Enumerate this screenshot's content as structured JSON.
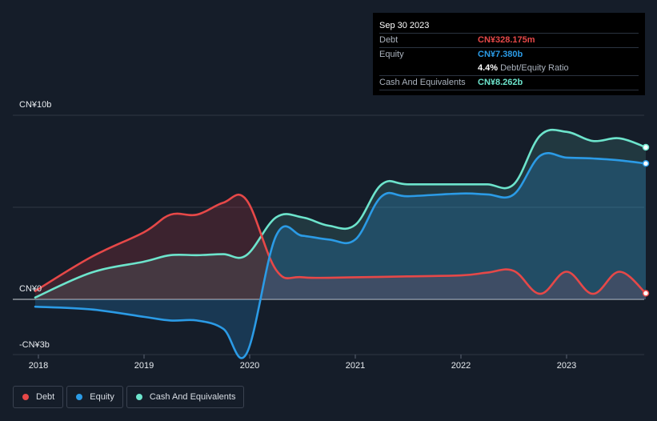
{
  "tooltip": {
    "date": "Sep 30 2023",
    "rows": [
      {
        "label": "Debt",
        "value": "CN¥328.175m"
      },
      {
        "label": "Equity",
        "value": "CN¥7.380b"
      },
      {
        "label": "",
        "value": "4.4%",
        "suffix": "Debt/Equity Ratio"
      },
      {
        "label": "Cash And Equivalents",
        "value": "CN¥8.262b"
      }
    ]
  },
  "y_axis": {
    "top_label": "CN¥10b",
    "zero_label": "CN¥0",
    "bottom_label": "-CN¥3b"
  },
  "x_axis": {
    "labels": [
      "2018",
      "2019",
      "2020",
      "2021",
      "2022",
      "2023"
    ]
  },
  "legend": [
    {
      "label": "Debt",
      "color": "#e64848"
    },
    {
      "label": "Equity",
      "color": "#2b9be6"
    },
    {
      "label": "Cash And Equivalents",
      "color": "#6de4cc"
    }
  ],
  "colors": {
    "background": "#151d29",
    "debt": "#e64848",
    "equity": "#2b9be6",
    "cash": "#6de4cc"
  },
  "chart_data": {
    "type": "area",
    "title": "",
    "xlabel": "",
    "ylabel": "",
    "x_range": [
      2018.0,
      2023.75
    ],
    "ylim": [
      -3,
      10
    ],
    "grid": true,
    "series": [
      {
        "name": "Debt",
        "x": [
          2017.97,
          2018.5,
          2019.0,
          2019.25,
          2019.5,
          2019.75,
          2019.97,
          2020.25,
          2020.5,
          2021.0,
          2021.5,
          2022.0,
          2022.25,
          2022.5,
          2022.75,
          2023.0,
          2023.25,
          2023.5,
          2023.75
        ],
        "values": [
          0.45,
          2.3,
          3.65,
          4.6,
          4.6,
          5.25,
          5.4,
          1.6,
          1.2,
          1.2,
          1.25,
          1.3,
          1.45,
          1.55,
          0.3,
          1.5,
          0.3,
          1.5,
          0.33
        ]
      },
      {
        "name": "Equity",
        "x": [
          2017.97,
          2018.5,
          2019.0,
          2019.25,
          2019.5,
          2019.75,
          2019.97,
          2020.25,
          2020.5,
          2020.75,
          2021.0,
          2021.25,
          2021.5,
          2022.0,
          2022.25,
          2022.5,
          2022.75,
          2023.0,
          2023.25,
          2023.5,
          2023.75
        ],
        "values": [
          -0.4,
          -0.55,
          -0.95,
          -1.15,
          -1.15,
          -1.6,
          -2.95,
          3.45,
          3.45,
          3.25,
          3.25,
          5.6,
          5.6,
          5.75,
          5.7,
          5.7,
          7.8,
          7.7,
          7.65,
          7.55,
          7.38
        ]
      },
      {
        "name": "Cash And Equivalents",
        "x": [
          2017.97,
          2018.5,
          2019.0,
          2019.25,
          2019.5,
          2019.75,
          2019.97,
          2020.25,
          2020.5,
          2020.75,
          2021.0,
          2021.25,
          2021.5,
          2022.0,
          2022.25,
          2022.5,
          2022.75,
          2023.0,
          2023.25,
          2023.5,
          2023.75
        ],
        "values": [
          0.1,
          1.45,
          2.05,
          2.4,
          2.4,
          2.45,
          2.4,
          4.45,
          4.45,
          4.0,
          4.05,
          6.25,
          6.25,
          6.25,
          6.25,
          6.25,
          8.9,
          9.1,
          8.6,
          8.75,
          8.26
        ]
      }
    ]
  }
}
